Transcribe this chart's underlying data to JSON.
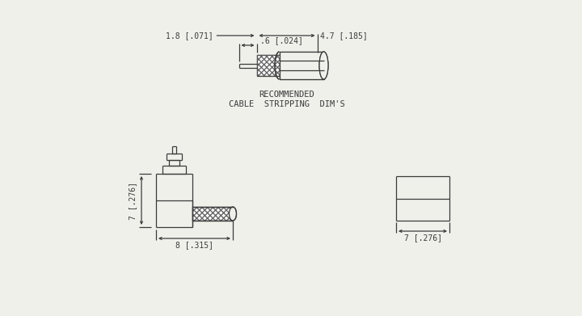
{
  "bg_color": "#f0f0eb",
  "line_color": "#3a3a3a",
  "hatch_color": "#666666",
  "text_color": "#3a3a3a",
  "recommended_line1": "RECOMMENDED",
  "recommended_line2": "CABLE  STRIPPING  DIM'S",
  "dim_06": ".6 [.024]",
  "dim_18": "1.8 [.071]",
  "dim_47": "4.7 [.185]",
  "dim_7_276": "7 [.276]",
  "dim_8_315": "8 [.315]",
  "dim_7_276b": "7 [.276]",
  "font_size_dim": 7.0,
  "font_size_label": 7.5
}
